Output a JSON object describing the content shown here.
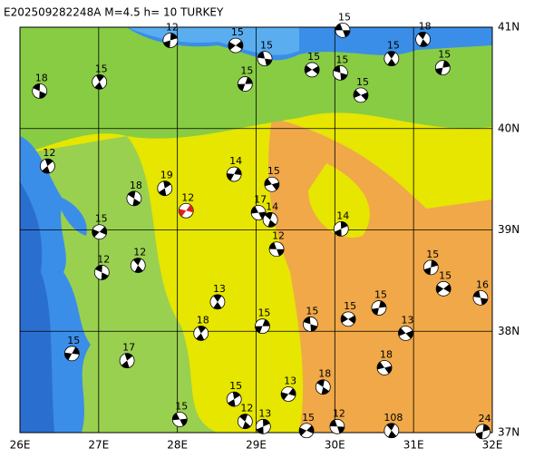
{
  "title": "E202509282248A  M=4.5  h= 10  TURKEY",
  "ball_color": "#000000",
  "lonlim": [
    26,
    32
  ],
  "latlim": [
    37,
    41
  ],
  "lonticks": [
    {
      "value": 26,
      "label": "26E"
    },
    {
      "value": 27,
      "label": "27E"
    },
    {
      "value": 28,
      "label": "28E"
    },
    {
      "value": 29,
      "label": "29E"
    },
    {
      "value": 30,
      "label": "30E"
    },
    {
      "value": 31,
      "label": "31E"
    },
    {
      "value": 32,
      "label": "32E"
    }
  ],
  "latticks": [
    {
      "value": 37,
      "label": "37N"
    },
    {
      "value": 38,
      "label": "38N"
    },
    {
      "value": 39,
      "label": "39N"
    },
    {
      "value": 40,
      "label": "40N"
    },
    {
      "value": 41,
      "label": "41N"
    }
  ],
  "events": [
    {
      "lon": 30.1,
      "lat": 40.97,
      "depth": 15
    },
    {
      "lon": 31.12,
      "lat": 40.88,
      "depth": 18
    },
    {
      "lon": 27.91,
      "lat": 40.87,
      "depth": 12
    },
    {
      "lon": 28.74,
      "lat": 40.82,
      "depth": 15
    },
    {
      "lon": 29.11,
      "lat": 40.69,
      "depth": 15
    },
    {
      "lon": 30.72,
      "lat": 40.69,
      "depth": 15
    },
    {
      "lon": 31.37,
      "lat": 40.6,
      "depth": 15
    },
    {
      "lon": 29.71,
      "lat": 40.58,
      "depth": 15
    },
    {
      "lon": 30.07,
      "lat": 40.55,
      "depth": 15
    },
    {
      "lon": 27.01,
      "lat": 40.46,
      "depth": 15
    },
    {
      "lon": 28.86,
      "lat": 40.44,
      "depth": 15
    },
    {
      "lon": 30.33,
      "lat": 40.33,
      "depth": 15
    },
    {
      "lon": 26.25,
      "lat": 40.37,
      "depth": 18
    },
    {
      "lon": 26.35,
      "lat": 39.63,
      "depth": 12
    },
    {
      "lon": 28.72,
      "lat": 39.55,
      "depth": 14
    },
    {
      "lon": 29.2,
      "lat": 39.45,
      "depth": 15
    },
    {
      "lon": 27.45,
      "lat": 39.31,
      "depth": 18
    },
    {
      "lon": 27.84,
      "lat": 39.41,
      "depth": 19
    },
    {
      "lon": 28.11,
      "lat": 39.19,
      "depth": 12,
      "color": "#e02020"
    },
    {
      "lon": 29.03,
      "lat": 39.17,
      "depth": 17
    },
    {
      "lon": 29.18,
      "lat": 39.1,
      "depth": 14
    },
    {
      "lon": 30.08,
      "lat": 39.01,
      "depth": 14
    },
    {
      "lon": 27.01,
      "lat": 38.98,
      "depth": 15
    },
    {
      "lon": 29.26,
      "lat": 38.81,
      "depth": 12
    },
    {
      "lon": 27.5,
      "lat": 38.65,
      "depth": 12
    },
    {
      "lon": 31.22,
      "lat": 38.63,
      "depth": 15
    },
    {
      "lon": 31.38,
      "lat": 38.42,
      "depth": 15
    },
    {
      "lon": 31.85,
      "lat": 38.33,
      "depth": 16
    },
    {
      "lon": 28.51,
      "lat": 38.29,
      "depth": 13
    },
    {
      "lon": 30.56,
      "lat": 38.23,
      "depth": 15
    },
    {
      "lon": 30.17,
      "lat": 38.12,
      "depth": 15
    },
    {
      "lon": 29.69,
      "lat": 38.07,
      "depth": 15
    },
    {
      "lon": 28.3,
      "lat": 37.98,
      "depth": 18
    },
    {
      "lon": 29.08,
      "lat": 38.05,
      "depth": 15
    },
    {
      "lon": 30.9,
      "lat": 37.98,
      "depth": 13
    },
    {
      "lon": 27.04,
      "lat": 38.58,
      "depth": 12
    },
    {
      "lon": 27.36,
      "lat": 37.71,
      "depth": 17
    },
    {
      "lon": 26.66,
      "lat": 37.78,
      "depth": 15
    },
    {
      "lon": 30.63,
      "lat": 37.64,
      "depth": 18
    },
    {
      "lon": 29.85,
      "lat": 37.45,
      "depth": 18
    },
    {
      "lon": 28.72,
      "lat": 37.33,
      "depth": 15
    },
    {
      "lon": 29.41,
      "lat": 37.38,
      "depth": 13
    },
    {
      "lon": 28.03,
      "lat": 37.13,
      "depth": 15
    },
    {
      "lon": 28.86,
      "lat": 37.11,
      "depth": 12
    },
    {
      "lon": 29.09,
      "lat": 37.06,
      "depth": 13
    },
    {
      "lon": 29.64,
      "lat": 37.02,
      "depth": 15
    },
    {
      "lon": 30.03,
      "lat": 37.06,
      "depth": 12
    },
    {
      "lon": 30.72,
      "lat": 37.02,
      "depth": 108
    },
    {
      "lon": 31.88,
      "lat": 37.01,
      "depth": 24
    }
  ]
}
